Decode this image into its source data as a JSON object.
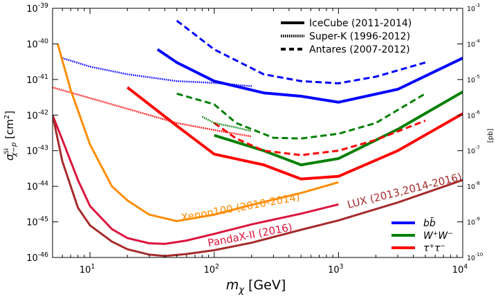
{
  "chart_data": {
    "type": "line",
    "xscale": "log",
    "yscale": "log",
    "xlim": [
      5,
      10000
    ],
    "ylim": [
      1e-46,
      1e-39
    ],
    "right_ylim": [
      1e-10,
      0.001
    ],
    "xlabel": "m_χ [GeV]",
    "xlabel_parts": {
      "sym": "m",
      "sub": "χ",
      "unit": " [GeV]"
    },
    "ylabel_parts": {
      "sym": "σ",
      "sup": "SI",
      "sub": "χ−p",
      "unit": " [cm",
      "unit_sup": "2",
      "unit_end": "]"
    },
    "right_ylabel": "[pb]",
    "x_ticks": [
      {
        "value": 10,
        "base": "10",
        "exp": "1"
      },
      {
        "value": 100,
        "base": "10",
        "exp": "2"
      },
      {
        "value": 1000,
        "base": "10",
        "exp": "3"
      },
      {
        "value": 10000,
        "base": "10",
        "exp": "4"
      }
    ],
    "y_ticks": [
      {
        "value": 1e-46,
        "base": "10",
        "exp": "-46"
      },
      {
        "value": 1e-45,
        "base": "10",
        "exp": "-45"
      },
      {
        "value": 1e-44,
        "base": "10",
        "exp": "-44"
      },
      {
        "value": 1e-43,
        "base": "10",
        "exp": "-43"
      },
      {
        "value": 1e-42,
        "base": "10",
        "exp": "-42"
      },
      {
        "value": 1e-41,
        "base": "10",
        "exp": "-41"
      },
      {
        "value": 1e-40,
        "base": "10",
        "exp": "-40"
      },
      {
        "value": 1e-39,
        "base": "10",
        "exp": "-39"
      }
    ],
    "right_ticks": [
      {
        "value": 1e-10,
        "base": "10",
        "exp": "-10"
      },
      {
        "value": 1e-09,
        "base": "10",
        "exp": "-9"
      },
      {
        "value": 1e-08,
        "base": "10",
        "exp": "-8"
      },
      {
        "value": 1e-07,
        "base": "10",
        "exp": "-7"
      },
      {
        "value": 1e-06,
        "base": "10",
        "exp": "-6"
      },
      {
        "value": 1e-05,
        "base": "10",
        "exp": "-5"
      },
      {
        "value": 0.0001,
        "base": "10",
        "exp": "-4"
      },
      {
        "value": 0.001,
        "base": "10",
        "exp": "-3"
      }
    ],
    "style_legend": [
      {
        "label": "IceCube (2011-2014)",
        "dash": "solid"
      },
      {
        "label": "Super-K (1996-2012)",
        "dash": "dotted"
      },
      {
        "label": "Antares (2007-2012)",
        "dash": "dashed"
      }
    ],
    "channel_legend": [
      {
        "label_math": "bb̄",
        "color": "#0000ff",
        "parts": [
          {
            "t": "b",
            "i": true
          },
          {
            "t": "b̄",
            "i": true
          }
        ]
      },
      {
        "label_math": "W⁺W⁻",
        "color": "#008000",
        "parts": [
          {
            "t": "W",
            "i": true
          },
          {
            "t": "+",
            "sup": true
          },
          {
            "t": "W",
            "i": true
          },
          {
            "t": "−",
            "sup": true
          }
        ]
      },
      {
        "label_math": "τ⁺τ⁻",
        "color": "#ff0000",
        "parts": [
          {
            "t": "τ",
            "i": true
          },
          {
            "t": "+",
            "sup": true
          },
          {
            "t": "τ",
            "i": true
          },
          {
            "t": "−",
            "sup": true
          }
        ]
      }
    ],
    "annotations": [
      {
        "text": "Xenon100 (2010-2014)",
        "color": "#ff8c00",
        "x": 55,
        "y": 1.05e-45,
        "angle": -10
      },
      {
        "text": "PandaX-II (2016)",
        "color": "#dc143c",
        "x": 90,
        "y": 2e-46,
        "angle": -11
      },
      {
        "text": "LUX (2013,2014-2016)",
        "color": "#a52a2a",
        "x": 1200,
        "y": 2.4e-45,
        "angle": -14
      }
    ],
    "series": [
      {
        "name": "IceCube bb̄",
        "color": "#0000ff",
        "dash": "solid",
        "width": 4,
        "x": [
          35,
          50,
          100,
          250,
          500,
          1000,
          3000,
          10000
        ],
        "y": [
          7e-41,
          3e-41,
          9e-42,
          4.2e-42,
          3.4e-42,
          2.3e-42,
          5.3e-42,
          4e-41
        ]
      },
      {
        "name": "IceCube W+W-",
        "color": "#008000",
        "dash": "solid",
        "width": 4,
        "x": [
          100,
          250,
          500,
          1000,
          3000,
          10000
        ],
        "y": [
          2.7e-43,
          1e-43,
          4e-44,
          6e-44,
          4e-43,
          4.5e-42
        ]
      },
      {
        "name": "IceCube τ+τ-",
        "color": "#ff0000",
        "dash": "solid",
        "width": 4,
        "x": [
          20,
          50,
          100,
          250,
          500,
          1000,
          3000,
          10000
        ],
        "y": [
          6e-42,
          5e-43,
          8e-44,
          4e-44,
          1.6e-44,
          1.9e-44,
          1e-43,
          1.1e-42
        ]
      },
      {
        "name": "Antares bb̄",
        "color": "#0000ff",
        "dash": "dashed",
        "width": 3,
        "x": [
          50,
          100,
          250,
          500,
          1000,
          2000,
          5000
        ],
        "y": [
          4.5e-40,
          7e-41,
          1.4e-41,
          9e-42,
          7.8e-42,
          1.2e-41,
          3e-41
        ]
      },
      {
        "name": "Antares W+W-",
        "color": "#008000",
        "dash": "dashed",
        "width": 3,
        "x": [
          50,
          100,
          150,
          300,
          500,
          1000,
          2000,
          5000
        ],
        "y": [
          4e-42,
          2e-42,
          6e-43,
          2.3e-43,
          2.2e-43,
          3e-43,
          6e-43,
          4e-42
        ]
      },
      {
        "name": "Antares τ+τ-",
        "color": "#ff0000",
        "dash": "dashed",
        "width": 3,
        "x": [
          100,
          150,
          250,
          500,
          1000,
          2000,
          5000
        ],
        "y": [
          6e-43,
          2.2e-43,
          1e-43,
          7.5e-44,
          1e-43,
          2e-43,
          7e-43
        ]
      },
      {
        "name": "Super-K bb̄",
        "color": "#0000ff",
        "dash": "dotted",
        "width": 2.5,
        "x": [
          6,
          10,
          20,
          50,
          100,
          200
        ],
        "y": [
          4e-41,
          2.3e-41,
          1.4e-41,
          9e-42,
          8e-42,
          6.5e-42
        ]
      },
      {
        "name": "Super-K W+W-",
        "color": "#008000",
        "dash": "dotted",
        "width": 2.5,
        "x": [
          80,
          100,
          150,
          200
        ],
        "y": [
          9e-43,
          6e-43,
          4.5e-43,
          3.5e-43
        ]
      },
      {
        "name": "Super-K τ+τ-",
        "color": "#ff0000",
        "dash": "dotted",
        "width": 2.5,
        "x": [
          5,
          10,
          20,
          50,
          100,
          200
        ],
        "y": [
          6e-42,
          3e-42,
          1.5e-42,
          6e-43,
          3.8e-43,
          2.5e-43
        ]
      },
      {
        "name": "Xenon100 (2010-2014)",
        "color": "#ff8c00",
        "dash": "solid",
        "width": 3,
        "x": [
          5.5,
          7,
          10,
          15,
          20,
          30,
          50,
          100,
          200,
          500,
          1000
        ],
        "y": [
          1e-40,
          5e-42,
          1.5e-43,
          1e-44,
          4e-45,
          1.6e-45,
          1.05e-45,
          1.6e-45,
          3e-45,
          6.5e-45,
          1.3e-44
        ]
      },
      {
        "name": "PandaX-II (2016)",
        "color": "#dc143c",
        "dash": "solid",
        "width": 3,
        "x": [
          5,
          6,
          8,
          10,
          15,
          20,
          30,
          40,
          60,
          100,
          200,
          500,
          1000
        ],
        "y": [
          1e-42,
          2e-43,
          1.5e-44,
          2.8e-45,
          6.3e-46,
          3.5e-46,
          2.5e-46,
          2.4e-46,
          3e-46,
          4.6e-46,
          8.5e-46,
          1.7e-45,
          3.1e-45
        ]
      },
      {
        "name": "LUX (2013,2014-2016)",
        "color": "#a52a2a",
        "dash": "solid",
        "width": 3,
        "x": [
          5,
          6,
          8,
          10,
          15,
          20,
          30,
          40,
          60,
          100,
          200,
          500,
          1000,
          3000,
          10000
        ],
        "y": [
          1e-42,
          5e-44,
          2.5e-45,
          8e-46,
          2.8e-46,
          1.7e-46,
          1.2e-46,
          1.1e-46,
          1.25e-46,
          1.6e-46,
          2.6e-46,
          6e-46,
          1.1e-45,
          3.5e-45,
          1.5e-44
        ]
      }
    ]
  }
}
